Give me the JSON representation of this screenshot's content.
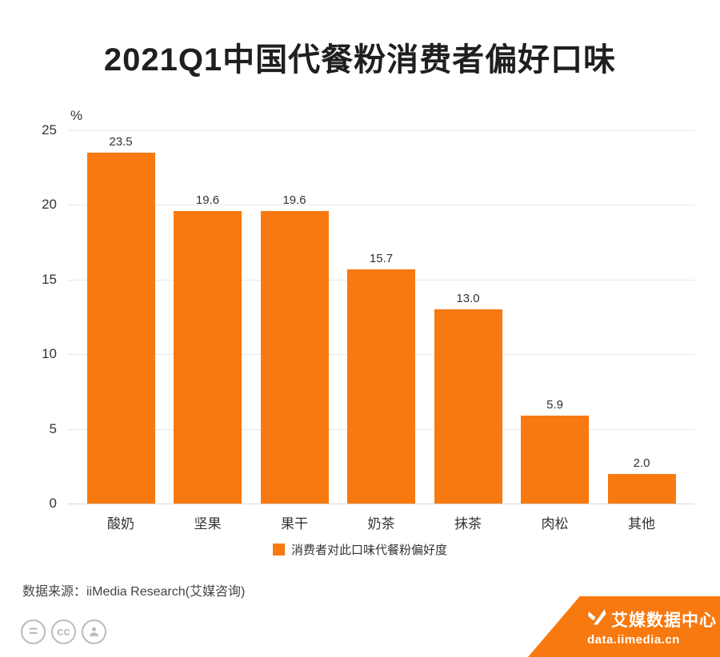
{
  "page": {
    "title": "2021Q1中国代餐粉消费者偏好口味"
  },
  "chart_data": {
    "type": "bar",
    "title": "2021Q1中国代餐粉消费者偏好口味",
    "categories": [
      "酸奶",
      "坚果",
      "果干",
      "奶茶",
      "抹茶",
      "肉松",
      "其他"
    ],
    "values": [
      23.5,
      19.6,
      19.6,
      15.7,
      13.0,
      5.9,
      2.0
    ],
    "value_labels": [
      "23.5",
      "19.6",
      "19.6",
      "15.7",
      "13.0",
      "5.9",
      "2.0"
    ],
    "xlabel": "",
    "ylabel": "%",
    "ylim": [
      0,
      25
    ],
    "yticks": [
      0,
      5,
      10,
      15,
      20,
      25
    ],
    "grid": true,
    "bar_color": "#F8790F",
    "legend_position": "bottom",
    "legend": [
      {
        "label": "消费者对此口味代餐粉偏好度",
        "color": "#F8790F"
      }
    ]
  },
  "source": {
    "text": "数据来源：iiMedia Research(艾媒咨询)"
  },
  "footer": {
    "badges": [
      {
        "name": "equals-icon",
        "glyph": "="
      },
      {
        "name": "cc-icon",
        "glyph": "cc"
      },
      {
        "name": "person-icon",
        "glyph": ""
      }
    ],
    "brand": "艾媒数据中心",
    "site": "data.iimedia.cn",
    "ribbon_color": "#F8790F"
  }
}
